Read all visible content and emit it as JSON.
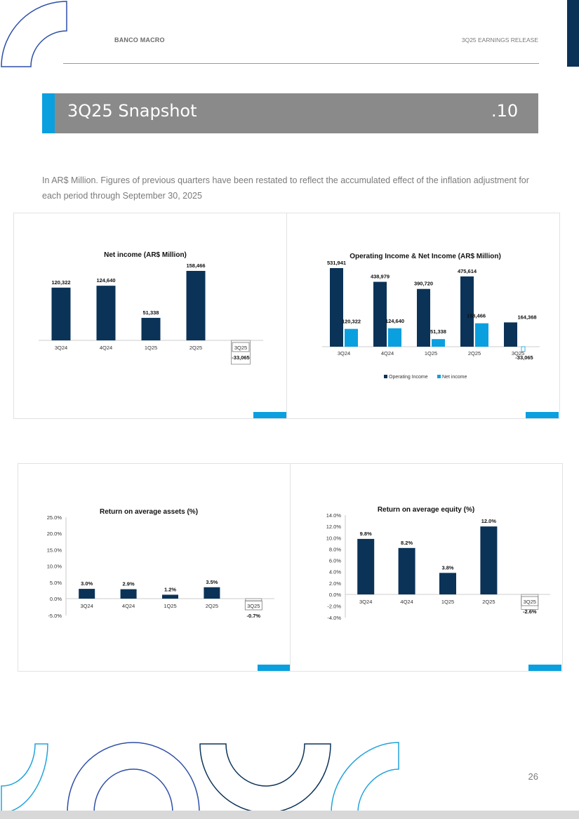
{
  "header": {
    "company": "BANCO MACRO",
    "report": "3Q25 EARNINGS RELEASE"
  },
  "section": {
    "title": "3Q25 Snapshot",
    "number": ".10"
  },
  "intro_text": "In AR$ Million. Figures of previous quarters have been restated to reflect the accumulated effect of the inflation adjustment for each period through September 30, 2025",
  "page_number": "26",
  "colors": {
    "navy": "#0b3358",
    "cyan": "#0aa0e0",
    "gray_band": "#8a8a8a"
  },
  "chart_data": [
    {
      "id": "net_income",
      "type": "bar",
      "title": "Net income (AR$ Million)",
      "categories": [
        "3Q24",
        "4Q24",
        "1Q25",
        "2Q25",
        "3Q25"
      ],
      "values": [
        120322,
        124640,
        51338,
        158466,
        -33065
      ],
      "labels": [
        "120,322",
        "124,640",
        "51,338",
        "158,466",
        "-33,065"
      ],
      "ylim": [
        -33065,
        158466
      ]
    },
    {
      "id": "op_income_net_income",
      "type": "bar",
      "title": "Operating Income & Net Income (AR$ Million)",
      "categories": [
        "3Q24",
        "4Q24",
        "1Q25",
        "2Q25",
        "3Q25"
      ],
      "series": [
        {
          "name": "Operating Income",
          "values": [
            531941,
            438979,
            390720,
            475614,
            164368
          ],
          "labels": [
            "531,941",
            "438,979",
            "390,720",
            "475,614",
            "164,368"
          ]
        },
        {
          "name": "Net income",
          "values": [
            120322,
            124640,
            51338,
            158466,
            -33065
          ],
          "labels": [
            "120,322",
            "124,640",
            "51,338",
            "158,466",
            "-33,065"
          ]
        }
      ],
      "legend": "bottom"
    },
    {
      "id": "roaa",
      "type": "bar",
      "title": "Return on average assets (%)",
      "categories": [
        "3Q24",
        "4Q24",
        "1Q25",
        "2Q25",
        "3Q25"
      ],
      "values": [
        3.0,
        2.9,
        1.2,
        3.5,
        -0.7
      ],
      "labels": [
        "3.0%",
        "2.9%",
        "1.2%",
        "3.5%",
        "-0.7%"
      ],
      "yticks": [
        "25.0%",
        "20.0%",
        "15.0%",
        "10.0%",
        "5.0%",
        "0.0%",
        "-5.0%"
      ],
      "ylim": [
        -5,
        25
      ]
    },
    {
      "id": "roae",
      "type": "bar",
      "title": "Return on average equity (%)",
      "categories": [
        "3Q24",
        "4Q24",
        "1Q25",
        "2Q25",
        "3Q25"
      ],
      "values": [
        9.8,
        8.2,
        3.8,
        12.0,
        -2.6
      ],
      "labels": [
        "9.8%",
        "8.2%",
        "3.8%",
        "12.0%",
        "-2.6%"
      ],
      "yticks": [
        "14.0%",
        "12.0%",
        "10.0%",
        "8.0%",
        "6.0%",
        "4.0%",
        "2.0%",
        "0.0%",
        "-2.0%",
        "-4.0%"
      ],
      "ylim": [
        -4,
        14
      ]
    }
  ]
}
